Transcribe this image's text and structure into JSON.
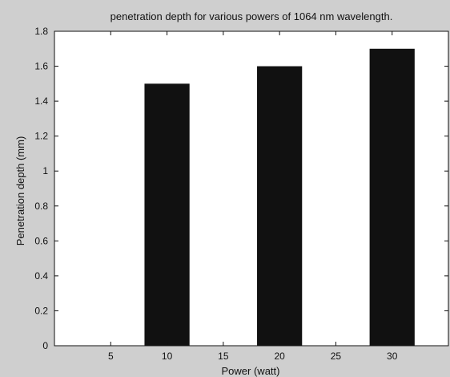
{
  "chart_data": {
    "type": "bar",
    "title": "penetration depth for various powers of 1064 nm wavelength.",
    "xlabel": "Power (watt)",
    "ylabel": "Penetration depth (mm)",
    "x": [
      10,
      20,
      30
    ],
    "values": [
      1.5,
      1.6,
      1.7
    ],
    "bar_width": 4,
    "xlim": [
      0,
      35
    ],
    "ylim": [
      0,
      1.8
    ],
    "xticks": [
      "5",
      "10",
      "15",
      "20",
      "25",
      "30"
    ],
    "xtick_values": [
      5,
      10,
      15,
      20,
      25,
      30
    ],
    "yticks": [
      "0",
      "0.2",
      "0.4",
      "0.6",
      "0.8",
      "1",
      "1.2",
      "1.4",
      "1.6",
      "1.8"
    ],
    "ytick_values": [
      0,
      0.2,
      0.4,
      0.6,
      0.8,
      1,
      1.2,
      1.4,
      1.6,
      1.8
    ],
    "grid": false,
    "legend": "none",
    "colors": {
      "background": "#cfcfcf",
      "plot_area": "#ffffff",
      "bar": "#111111",
      "axis": "#111111"
    }
  }
}
